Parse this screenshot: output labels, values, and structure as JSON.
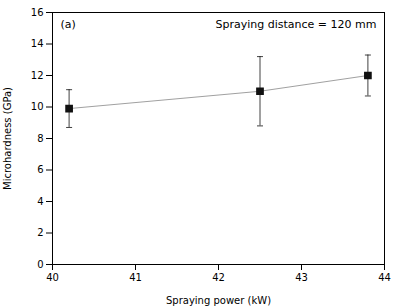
{
  "chart_data": {
    "type": "line",
    "x": [
      40.2,
      42.5,
      43.8
    ],
    "values": [
      9.9,
      11.0,
      12.0
    ],
    "yerr": [
      1.2,
      2.2,
      1.3
    ],
    "xlabel": "Spraying power (kW)",
    "ylabel": "Microhardness (GPa)",
    "annotations": [
      "(a)",
      "Spraying distance = 120 mm"
    ],
    "xlim": [
      40,
      44
    ],
    "ylim": [
      0,
      16
    ],
    "xticks": [
      40,
      41,
      42,
      43,
      44
    ],
    "yticks": [
      0,
      2,
      4,
      6,
      8,
      10,
      12,
      14,
      16
    ],
    "color": "#111111",
    "marker": "square",
    "grid": false
  }
}
